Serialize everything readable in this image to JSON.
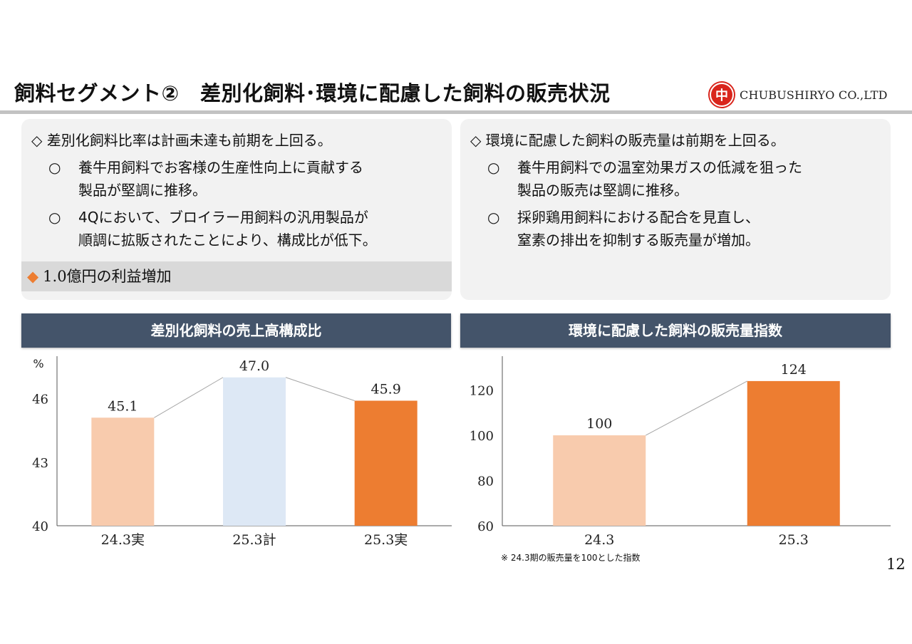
{
  "header": {
    "title": "飼料セグメント②　差別化飼料･環境に配慮した飼料の販売状況",
    "logo_mark": "中",
    "logo_text": "CHUBUSHIRYO CO.,LTD"
  },
  "left_panel": {
    "heading": "◇ 差別化飼料比率は計画未達も前期を上回る。",
    "bullets": [
      {
        "marker": "○",
        "line1": "養牛用飼料でお客様の生産性向上に貢献する",
        "line2": "製品が堅調に推移。"
      },
      {
        "marker": "○",
        "line1": "4Qにおいて、ブロイラー用飼料の汎用製品が",
        "line2": "順調に拡販されたことにより、構成比が低下。"
      }
    ],
    "highlight_marker": "◆",
    "highlight": "1.0億円の利益増加"
  },
  "right_panel": {
    "heading": "◇ 環境に配慮した飼料の販売量は前期を上回る。",
    "bullets": [
      {
        "marker": "○",
        "line1": "養牛用飼料での温室効果ガスの低減を狙った",
        "line2": "製品の販売は堅調に推移。"
      },
      {
        "marker": "○",
        "line1": "採卵鶏用飼料における配合を見直し、",
        "line2": "窒素の排出を抑制する販売量が増加。"
      }
    ]
  },
  "chart_data": [
    {
      "type": "bar",
      "title": "差別化飼料の売上高構成比",
      "ylabel": "%",
      "categories": [
        "24.3実",
        "25.3計",
        "25.3実"
      ],
      "values": [
        45.1,
        47.0,
        45.9
      ],
      "value_labels": [
        "45.1",
        "47.0",
        "45.9"
      ],
      "ylim": [
        40,
        48
      ],
      "yticks": [
        40,
        43,
        46
      ],
      "colors": [
        "#f8cbad",
        "#dde8f5",
        "#ed7d31"
      ],
      "connector_lines": true,
      "grid": false
    },
    {
      "type": "bar",
      "title": "環境に配慮した飼料の販売量指数",
      "ylabel": "",
      "categories": [
        "24.3",
        "25.3"
      ],
      "values": [
        100,
        124
      ],
      "value_labels": [
        "100",
        "124"
      ],
      "ylim": [
        60,
        135
      ],
      "yticks": [
        60,
        80,
        100,
        120
      ],
      "colors": [
        "#f8cbad",
        "#ed7d31"
      ],
      "connector_lines": true,
      "grid": false
    }
  ],
  "footnote": "※ 24.3期の販売量を100とした指数",
  "page_number": "12"
}
